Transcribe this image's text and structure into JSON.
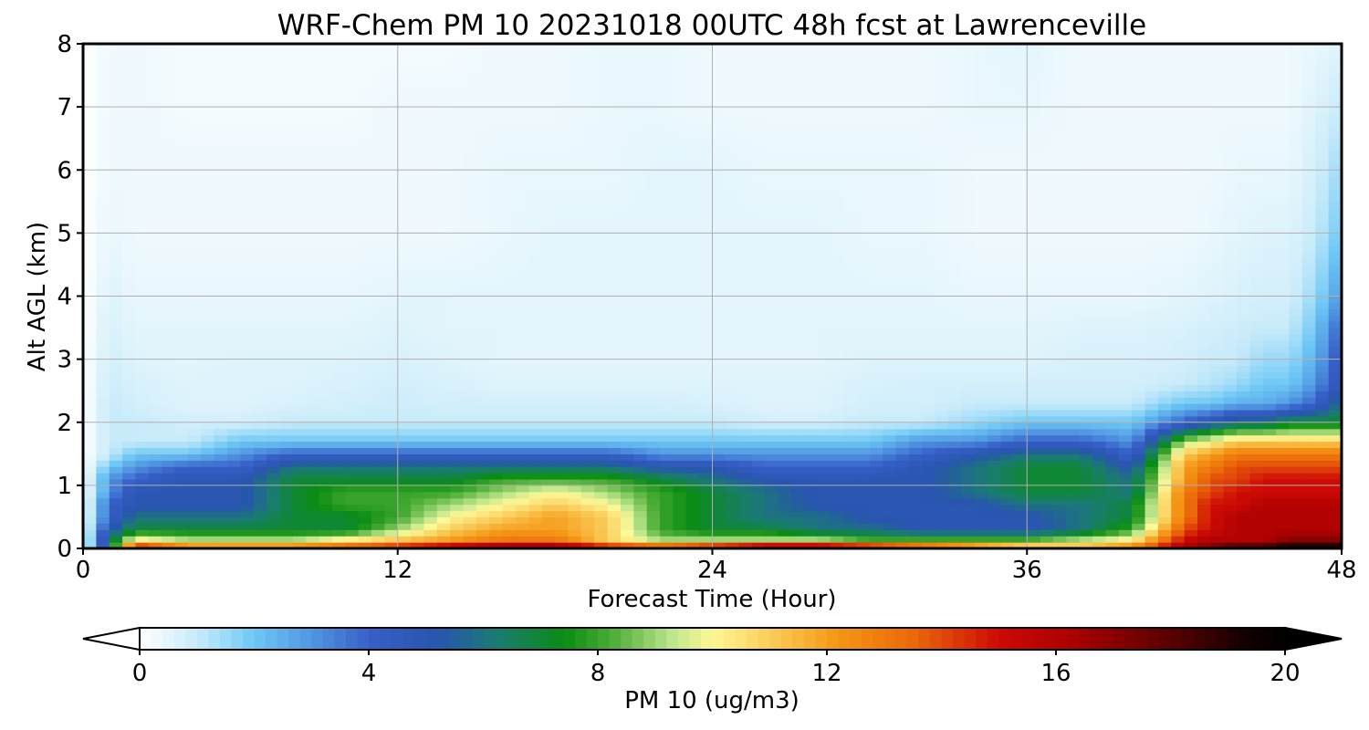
{
  "chart_data": {
    "type": "heatmap",
    "title": "WRF-Chem PM 10  20231018 00UTC 48h fcst at Lawrenceville",
    "xlabel": "Forecast Time (Hour)",
    "ylabel": "Alt AGL (km)",
    "xlim": [
      0,
      48
    ],
    "ylim": [
      0,
      8
    ],
    "x_ticks": [
      "0",
      "12",
      "24",
      "36",
      "48"
    ],
    "y_ticks": [
      "0",
      "1",
      "2",
      "3",
      "4",
      "5",
      "6",
      "7",
      "8"
    ],
    "grid": true,
    "colorbar": {
      "label": "PM 10  (ug/m3)",
      "ticks": [
        "0",
        "4",
        "8",
        "12",
        "16",
        "20"
      ],
      "range": [
        0,
        20
      ],
      "extend": "both",
      "orientation": "horizontal"
    },
    "x_hours": [
      0,
      1,
      2,
      4,
      6,
      8,
      10,
      12,
      14,
      16,
      18,
      20,
      22,
      24,
      26,
      28,
      30,
      32,
      34,
      36,
      38,
      40,
      42,
      43,
      44,
      45,
      46,
      47,
      48
    ],
    "y_km": [
      0.05,
      0.15,
      0.3,
      0.5,
      0.7,
      0.9,
      1.1,
      1.3,
      1.5,
      1.7,
      2.0,
      2.3,
      2.6,
      3.0,
      3.5,
      4.0,
      5.0,
      6.0,
      7.0,
      8.0
    ],
    "pm10_values": [
      [
        0,
        6,
        14,
        12,
        12,
        12,
        13,
        14,
        15,
        16,
        16,
        14,
        13,
        14,
        15,
        15,
        14,
        13,
        12,
        11,
        11,
        12,
        16,
        17,
        18,
        18,
        19,
        19,
        19
      ],
      [
        0,
        6,
        10,
        9,
        9,
        9,
        10,
        11,
        12,
        13,
        13,
        11,
        9,
        9,
        9,
        9,
        8,
        8,
        8,
        8,
        9,
        10,
        15,
        16,
        16,
        16,
        17,
        17,
        17
      ],
      [
        0,
        5,
        7,
        7,
        7,
        7,
        7,
        9,
        11,
        12,
        12,
        11,
        8,
        7,
        7,
        6,
        6,
        5,
        5,
        5,
        6,
        8,
        14,
        15,
        16,
        16,
        16,
        16,
        16
      ],
      [
        0,
        4,
        6,
        6,
        6,
        7,
        7,
        8,
        10,
        11,
        12,
        11,
        8,
        7,
        6,
        6,
        5,
        5,
        5,
        5,
        6,
        7,
        13,
        15,
        16,
        16,
        16,
        16,
        16
      ],
      [
        0,
        4,
        5,
        5,
        5,
        7,
        8,
        8,
        9,
        10,
        11,
        10,
        8,
        7,
        6,
        5,
        5,
        5,
        5,
        6,
        6,
        7,
        13,
        15,
        15,
        16,
        16,
        16,
        16
      ],
      [
        0,
        3,
        5,
        5,
        5,
        7,
        8,
        8,
        8,
        9,
        10,
        9,
        8,
        7,
        6,
        5,
        5,
        5,
        6,
        7,
        7,
        6,
        13,
        14,
        15,
        15,
        15,
        15,
        15
      ],
      [
        0,
        3,
        4,
        5,
        5,
        7,
        7,
        7,
        7,
        8,
        8,
        8,
        7,
        6,
        5,
        5,
        5,
        5,
        6,
        7,
        7,
        6,
        12,
        14,
        14,
        15,
        15,
        15,
        15
      ],
      [
        0,
        2,
        3,
        4,
        4,
        6,
        6,
        6,
        6,
        6,
        6,
        6,
        5,
        5,
        4,
        4,
        4,
        5,
        6,
        7,
        7,
        5,
        12,
        13,
        14,
        14,
        14,
        14,
        14
      ],
      [
        0,
        1,
        2,
        2,
        3,
        4,
        4,
        4,
        4,
        4,
        4,
        4,
        3,
        3,
        3,
        3,
        3,
        4,
        5,
        6,
        6,
        4,
        11,
        12,
        13,
        13,
        13,
        13,
        13
      ],
      [
        0,
        1,
        1,
        1,
        2,
        2,
        2,
        2,
        2,
        2,
        2,
        2,
        2,
        2,
        2,
        2,
        2,
        3,
        3,
        4,
        4,
        3,
        9,
        10,
        11,
        11,
        11,
        11,
        11
      ],
      [
        0,
        1,
        1,
        0.8,
        0.8,
        1,
        1,
        1,
        1,
        1,
        1,
        1,
        1,
        1,
        0.8,
        0.8,
        1,
        1,
        1.5,
        2,
        2,
        2,
        4,
        5,
        6,
        6,
        7,
        7,
        7
      ],
      [
        0,
        1,
        0.8,
        0.6,
        0.6,
        0.7,
        0.8,
        0.9,
        0.8,
        0.8,
        0.8,
        0.8,
        0.8,
        0.7,
        0.6,
        0.6,
        0.8,
        0.8,
        1,
        1,
        1,
        1,
        2,
        2,
        2.5,
        2.5,
        3,
        4,
        6
      ],
      [
        0,
        0.9,
        0.7,
        0.6,
        0.6,
        0.6,
        0.7,
        0.8,
        0.7,
        0.6,
        0.6,
        0.6,
        0.6,
        0.6,
        0.6,
        0.6,
        0.7,
        0.8,
        0.8,
        0.8,
        0.8,
        0.8,
        1,
        1.2,
        1.5,
        2,
        2,
        3,
        5
      ],
      [
        0,
        0.8,
        0.6,
        0.5,
        0.6,
        0.6,
        0.6,
        0.7,
        0.6,
        0.5,
        0.5,
        0.5,
        0.5,
        0.5,
        0.5,
        0.5,
        0.6,
        0.6,
        0.6,
        0.6,
        0.7,
        0.7,
        0.8,
        1,
        1,
        1.5,
        1.5,
        2.5,
        4.5
      ],
      [
        0,
        0.7,
        0.5,
        0.5,
        0.5,
        0.5,
        0.5,
        0.6,
        0.5,
        0.5,
        0.5,
        0.5,
        0.5,
        0.5,
        0.5,
        0.5,
        0.5,
        0.5,
        0.5,
        0.5,
        0.6,
        0.6,
        0.7,
        0.8,
        0.9,
        1,
        1,
        2,
        4
      ],
      [
        0,
        0.6,
        0.4,
        0.4,
        0.4,
        0.4,
        0.4,
        0.5,
        0.5,
        0.5,
        0.5,
        0.5,
        0.5,
        0.5,
        0.5,
        0.5,
        0.5,
        0.5,
        0.4,
        0.4,
        0.4,
        0.4,
        0.5,
        0.6,
        0.7,
        0.8,
        0.8,
        1.5,
        3
      ],
      [
        0,
        0.4,
        0.3,
        0.3,
        0.3,
        0.3,
        0.3,
        0.3,
        0.3,
        0.4,
        0.5,
        0.5,
        0.5,
        0.5,
        0.5,
        0.5,
        0.4,
        0.4,
        0.3,
        0.3,
        0.3,
        0.3,
        0.3,
        0.4,
        0.5,
        0.6,
        0.6,
        1,
        2
      ],
      [
        0,
        0.3,
        0.3,
        0.3,
        0.3,
        0.3,
        0.3,
        0.3,
        0.3,
        0.4,
        0.4,
        0.4,
        0.5,
        0.5,
        0.4,
        0.4,
        0.4,
        0.4,
        0.3,
        0.3,
        0.3,
        0.3,
        0.3,
        0.3,
        0.4,
        0.4,
        0.4,
        0.8,
        1.5
      ],
      [
        0,
        0.3,
        0.3,
        0.2,
        0.2,
        0.2,
        0.2,
        0.3,
        0.3,
        0.3,
        0.3,
        0.4,
        0.4,
        0.3,
        0.3,
        0.3,
        0.3,
        0.3,
        0.4,
        0.4,
        0.3,
        0.3,
        0.3,
        0.3,
        0.3,
        0.3,
        0.3,
        0.6,
        1
      ],
      [
        0,
        0.3,
        0.3,
        0.2,
        0.2,
        0.2,
        0.2,
        0.2,
        0.2,
        0.3,
        0.3,
        0.4,
        0.4,
        0.3,
        0.3,
        0.3,
        0.3,
        0.3,
        0.4,
        0.5,
        0.3,
        0.3,
        0.3,
        0.3,
        0.3,
        0.3,
        0.3,
        0.4,
        0.6
      ]
    ]
  }
}
